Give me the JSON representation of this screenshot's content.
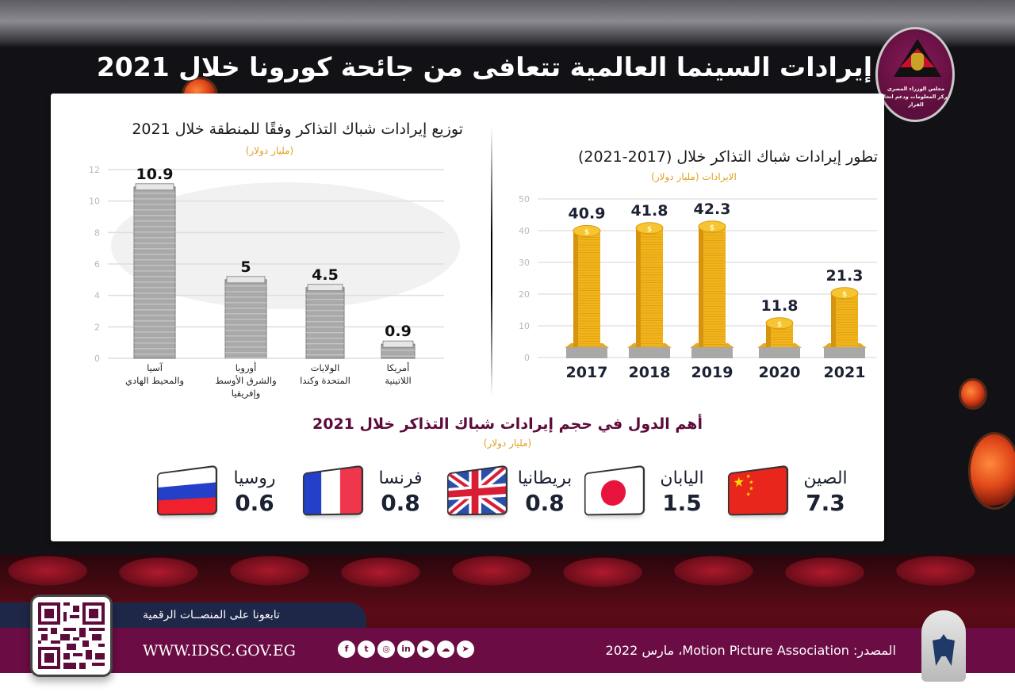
{
  "header": {
    "title": "إيرادات السينما العالمية تتعافى من جائحة كورونا خلال 2021",
    "logo_text": [
      "مجلس الوزراء المصرى",
      "مركز المعلومات ودعم اتخاذ القرار"
    ]
  },
  "colors": {
    "accent_gold": "#e0a020",
    "brand_purple": "#6b0c44",
    "navy": "#1e2747",
    "value_text": "#1c2233",
    "bar_gray": "#9a9a9a",
    "coin_gold": "#f2b51c"
  },
  "countries": {
    "title": "أهم الدول في حجم إيرادات شباك التذاكر خلال 2021",
    "subtitle": "(مليار دولار)",
    "items": [
      {
        "name": "الصين",
        "value": "7.3",
        "flag": "china-flag-icon"
      },
      {
        "name": "اليابان",
        "value": "1.5",
        "flag": "japan-flag-icon"
      },
      {
        "name": "بريطانيا",
        "value": "0.8",
        "flag": "uk-flag-icon"
      },
      {
        "name": "فرنسا",
        "value": "0.8",
        "flag": "france-flag-icon"
      },
      {
        "name": "روسيا",
        "value": "0.6",
        "flag": "russia-flag-icon"
      }
    ]
  },
  "footer": {
    "follow_text": "تابعونا على المنصــات الرقمية",
    "url": "WWW.IDSC.GOV.EG",
    "socials": [
      "facebook-icon",
      "twitter-icon",
      "instagram-icon",
      "linkedin-icon",
      "youtube-icon",
      "soundcloud-icon",
      "telegram-icon"
    ],
    "source": "المصدر: Motion Picture Association، مارس 2022"
  },
  "chart_data": [
    {
      "type": "bar",
      "title": "توزيع إيرادات شباك التذاكر وفقًا للمنطقة خلال 2021",
      "subtitle": "(مليار دولار)",
      "categories": [
        [
          "آسيا",
          "والمحيط الهادي"
        ],
        [
          "أوروبا",
          "والشرق الأوسط",
          "وإفريقيا"
        ],
        [
          "الولايات",
          "المتحدة وكندا"
        ],
        [
          "أمريكا",
          "اللاتينية"
        ]
      ],
      "values": [
        10.9,
        5,
        4.5,
        0.9
      ],
      "value_labels": [
        "10.9",
        "5",
        "4.5",
        "0.9"
      ],
      "ylim": [
        0,
        12
      ],
      "yticks": [
        0,
        2,
        4,
        6,
        8,
        10,
        12
      ],
      "grid": true,
      "xlabel": "",
      "ylabel": ""
    },
    {
      "type": "bar",
      "title": "تطور إيرادات شباك التذاكر خلال (2017-2021)",
      "subtitle": "الايرادات (مليار دولار)",
      "categories": [
        "2017",
        "2018",
        "2019",
        "2020",
        "2021"
      ],
      "values": [
        40.9,
        41.8,
        42.3,
        11.8,
        21.3
      ],
      "value_labels": [
        "40.9",
        "41.8",
        "42.3",
        "11.8",
        "21.3"
      ],
      "ylim": [
        0,
        50
      ],
      "yticks": [
        0,
        10,
        20,
        30,
        40,
        50
      ],
      "grid": true,
      "xlabel": "",
      "ylabel": ""
    }
  ]
}
